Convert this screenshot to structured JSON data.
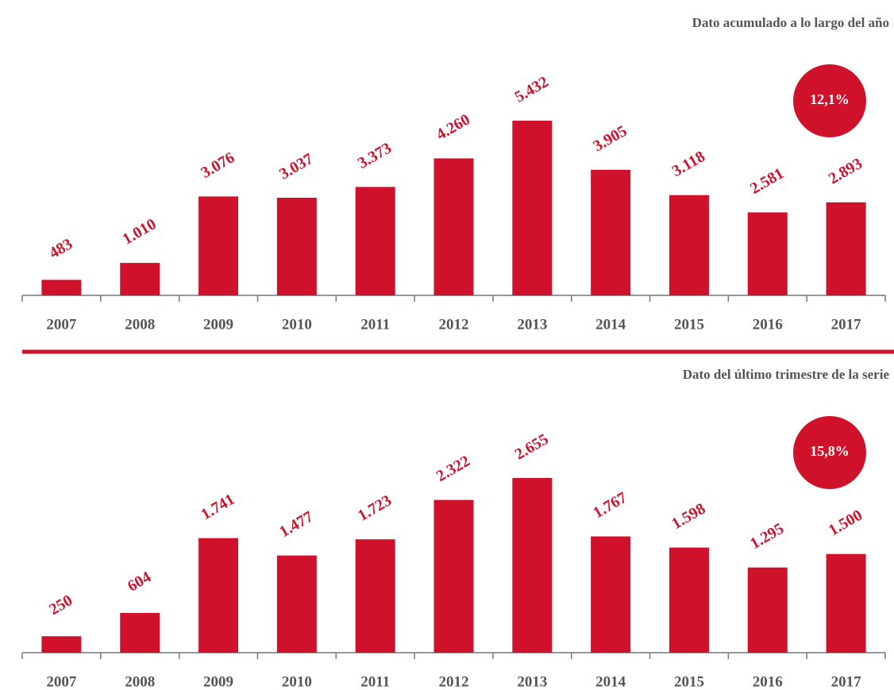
{
  "chart_data": [
    {
      "type": "bar",
      "title": "Dato acumulado a lo largo del año",
      "annotation": "12,1%",
      "color": "#d0112b",
      "categories": [
        "2007",
        "2008",
        "2009",
        "2010",
        "2011",
        "2012",
        "2013",
        "2014",
        "2015",
        "2016",
        "2017"
      ],
      "values": [
        483,
        1010,
        3076,
        3037,
        3373,
        4260,
        5432,
        3905,
        3118,
        2581,
        2893
      ],
      "value_labels": [
        "483",
        "1.010",
        "3.076",
        "3.037",
        "3.373",
        "4.260",
        "5.432",
        "3.905",
        "3.118",
        "2.581",
        "2.893"
      ]
    },
    {
      "type": "bar",
      "title": "Dato del último trimestre de la serie",
      "annotation": "15,8%",
      "color": "#d0112b",
      "categories": [
        "2007",
        "2008",
        "2009",
        "2010",
        "2011",
        "2012",
        "2013",
        "2014",
        "2015",
        "2016",
        "2017"
      ],
      "values": [
        250,
        604,
        1741,
        1477,
        1723,
        2322,
        2655,
        1767,
        1598,
        1295,
        1500
      ],
      "value_labels": [
        "250",
        "604",
        "1.741",
        "1.477",
        "1.723",
        "2.322",
        "2.655",
        "1.767",
        "1.598",
        "1.295",
        "1.500"
      ]
    }
  ]
}
